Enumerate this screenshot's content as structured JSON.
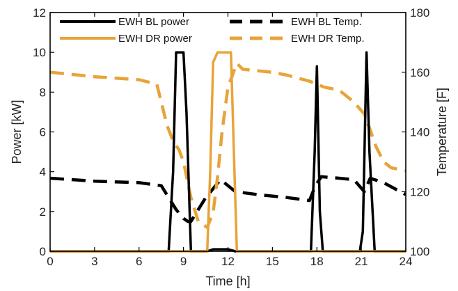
{
  "chart_data": {
    "type": "line",
    "xlabel": "Time [h]",
    "ylabel_left": "Power [kW]",
    "ylabel_right": "Temperature [F]",
    "xlim": [
      0,
      24
    ],
    "ylim_left": [
      0,
      12
    ],
    "ylim_right": [
      100,
      180
    ],
    "x_ticks": [
      "0",
      "3",
      "6",
      "9",
      "12",
      "15",
      "18",
      "21",
      "24"
    ],
    "y_ticks_left": [
      "0",
      "2",
      "4",
      "6",
      "8",
      "10",
      "12"
    ],
    "y_ticks_right": [
      "100",
      "120",
      "140",
      "160",
      "180"
    ],
    "grid": false,
    "legend_position": "top",
    "series": [
      {
        "name": "EWH BL power",
        "axis": "left",
        "color": "#000000",
        "style": "solid",
        "x": [
          0,
          8.0,
          8.3,
          8.5,
          8.6,
          9.0,
          9.2,
          9.5,
          10.6,
          11.0,
          12.0,
          12.5,
          17.6,
          17.85,
          18.0,
          18.2,
          18.4,
          20.9,
          21.1,
          21.35,
          21.55,
          21.9,
          24
        ],
        "y": [
          0,
          0,
          4,
          10,
          10,
          10,
          7,
          0,
          0,
          0.1,
          0.1,
          0,
          0,
          5,
          9.3,
          2,
          0,
          0,
          1,
          10,
          5,
          0,
          0
        ]
      },
      {
        "name": "EWH DR power",
        "axis": "left",
        "color": "#E8A33A",
        "style": "solid",
        "x": [
          0,
          10.6,
          10.8,
          11.0,
          11.3,
          12.2,
          12.4,
          12.6,
          24
        ],
        "y": [
          0,
          0,
          4,
          9.5,
          10,
          10,
          5,
          0,
          0
        ]
      },
      {
        "name": "EWH BL Temp.",
        "axis": "right",
        "color": "#000000",
        "style": "dashed",
        "x": [
          0,
          3,
          6,
          7.5,
          8.0,
          8.5,
          9.0,
          9.3,
          9.5,
          10.5,
          11.5,
          12.5,
          14,
          16,
          17.5,
          17.9,
          18.3,
          19.5,
          20.5,
          21.2,
          21.6,
          22.5,
          24
        ],
        "y": [
          124.5,
          123.5,
          123,
          122,
          118,
          114,
          111,
          110,
          110,
          118,
          124,
          120,
          119,
          118,
          117,
          122,
          125,
          124.5,
          124,
          120,
          124.5,
          123,
          119
        ]
      },
      {
        "name": "EWH DR Temp.",
        "axis": "right",
        "color": "#E8A33A",
        "style": "dashed",
        "x": [
          0,
          3,
          6,
          7.2,
          7.6,
          7.9,
          8.3,
          8.7,
          9.0,
          9.5,
          10.0,
          10.6,
          11.0,
          11.3,
          11.6,
          12.0,
          12.6,
          13.0,
          15,
          16,
          17.5,
          18.0,
          18.5,
          19.5,
          20.5,
          21.2,
          21.5,
          22.0,
          22.5,
          23.0,
          24
        ],
        "y": [
          160,
          158.5,
          157.5,
          156,
          148,
          142,
          137,
          134,
          130,
          118,
          110,
          108,
          113,
          125,
          140,
          155,
          163,
          161,
          160,
          159,
          157,
          156,
          155,
          154,
          150,
          146,
          142,
          135,
          130,
          128,
          127
        ]
      }
    ]
  }
}
